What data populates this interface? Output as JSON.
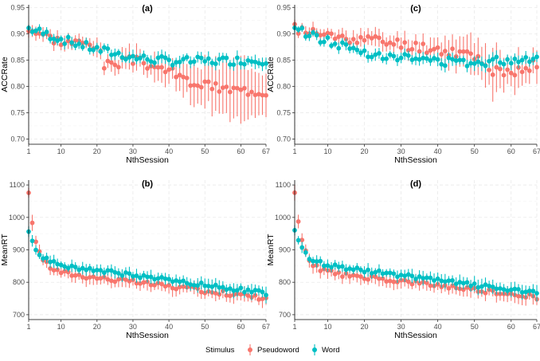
{
  "colors": {
    "pseudoword": "#F8766D",
    "word": "#00BFC4",
    "grid": "#e6e6e6"
  },
  "legend": {
    "title": "Stimulus",
    "items": [
      "Pseudoword",
      "Word"
    ]
  },
  "chart_data": [
    {
      "type": "scatter",
      "title": "(a)",
      "xlabel": "NthSession",
      "ylabel": "ACCRate",
      "xlim": [
        1,
        67
      ],
      "ylim": [
        0.69,
        0.955
      ],
      "xticks": [
        1,
        10,
        20,
        30,
        40,
        50,
        60,
        67
      ],
      "yticks": [
        0.7,
        0.75,
        0.8,
        0.85,
        0.9,
        0.95
      ],
      "yprecision": 2,
      "grid": true,
      "series": [
        {
          "name": "Pseudoword",
          "shape": "piecewise",
          "y": [
            [
              1,
              0.91
            ],
            [
              10,
              0.885
            ],
            [
              20,
              0.88
            ],
            [
              22,
              0.84
            ],
            [
              30,
              0.85
            ],
            [
              40,
              0.83
            ],
            [
              45,
              0.81
            ],
            [
              55,
              0.795
            ],
            [
              67,
              0.79
            ]
          ],
          "err": [
            [
              1,
              0.01
            ],
            [
              20,
              0.015
            ],
            [
              40,
              0.025
            ],
            [
              55,
              0.05
            ],
            [
              67,
              0.05
            ]
          ],
          "noise": 0.009,
          "seed": 3
        },
        {
          "name": "Word",
          "shape": "piecewise",
          "y": [
            [
              1,
              0.91
            ],
            [
              10,
              0.89
            ],
            [
              20,
              0.87
            ],
            [
              30,
              0.855
            ],
            [
              40,
              0.848
            ],
            [
              50,
              0.848
            ],
            [
              67,
              0.85
            ]
          ],
          "err": [
            [
              1,
              0.008
            ],
            [
              67,
              0.012
            ]
          ],
          "noise": 0.008,
          "seed": 7
        }
      ]
    },
    {
      "type": "scatter",
      "title": "(c)",
      "xlabel": "NthSession",
      "ylabel": "ACCRate",
      "xlim": [
        1,
        67
      ],
      "ylim": [
        0.69,
        0.955
      ],
      "xticks": [
        1,
        10,
        20,
        30,
        40,
        50,
        60,
        67
      ],
      "yticks": [
        0.7,
        0.75,
        0.8,
        0.85,
        0.9,
        0.95
      ],
      "yprecision": 2,
      "grid": true,
      "series": [
        {
          "name": "Pseudoword",
          "shape": "piecewise",
          "y": [
            [
              1,
              0.91
            ],
            [
              10,
              0.895
            ],
            [
              20,
              0.89
            ],
            [
              30,
              0.88
            ],
            [
              40,
              0.87
            ],
            [
              50,
              0.86
            ],
            [
              55,
              0.83
            ],
            [
              60,
              0.82
            ],
            [
              67,
              0.845
            ]
          ],
          "err": [
            [
              1,
              0.01
            ],
            [
              40,
              0.02
            ],
            [
              55,
              0.04
            ],
            [
              67,
              0.03
            ]
          ],
          "noise": 0.01,
          "seed": 11
        },
        {
          "name": "Word",
          "shape": "piecewise",
          "y": [
            [
              1,
              0.91
            ],
            [
              10,
              0.885
            ],
            [
              20,
              0.865
            ],
            [
              30,
              0.855
            ],
            [
              40,
              0.848
            ],
            [
              50,
              0.845
            ],
            [
              67,
              0.855
            ]
          ],
          "err": [
            [
              1,
              0.008
            ],
            [
              67,
              0.012
            ]
          ],
          "noise": 0.008,
          "seed": 13
        }
      ]
    },
    {
      "type": "scatter",
      "title": "(b)",
      "xlabel": "NthSession",
      "ylabel": "MeanRT",
      "xlim": [
        1,
        67
      ],
      "ylim": [
        685,
        1115
      ],
      "xticks": [
        1,
        10,
        20,
        30,
        40,
        50,
        60,
        67
      ],
      "yticks": [
        700,
        800,
        900,
        1000,
        1100
      ],
      "yprecision": 0,
      "grid": true,
      "series": [
        {
          "name": "Pseudoword",
          "shape": "decay",
          "a": 840,
          "b": 230,
          "c": 2.2,
          "slope": -1.35,
          "err": [
            [
              1,
              20
            ],
            [
              67,
              22
            ]
          ],
          "noise": 7,
          "seed": 17
        },
        {
          "name": "Word",
          "shape": "decay",
          "a": 865,
          "b": 90,
          "c": 2.5,
          "slope": -1.5,
          "err": [
            [
              1,
              15
            ],
            [
              67,
              20
            ]
          ],
          "noise": 6,
          "seed": 19
        }
      ]
    },
    {
      "type": "scatter",
      "title": "(d)",
      "xlabel": "NthSession",
      "ylabel": "MeanRT",
      "xlim": [
        1,
        67
      ],
      "ylim": [
        685,
        1115
      ],
      "xticks": [
        1,
        10,
        20,
        30,
        40,
        50,
        60,
        67
      ],
      "yticks": [
        700,
        800,
        900,
        1000,
        1100
      ],
      "yprecision": 0,
      "grid": true,
      "series": [
        {
          "name": "Pseudoword",
          "shape": "decay",
          "a": 840,
          "b": 230,
          "c": 2.2,
          "slope": -1.3,
          "err": [
            [
              1,
              20
            ],
            [
              67,
              22
            ]
          ],
          "noise": 7,
          "seed": 23
        },
        {
          "name": "Word",
          "shape": "decay",
          "a": 865,
          "b": 90,
          "c": 2.5,
          "slope": -1.5,
          "err": [
            [
              1,
              15
            ],
            [
              67,
              20
            ]
          ],
          "noise": 6,
          "seed": 29
        }
      ]
    }
  ]
}
